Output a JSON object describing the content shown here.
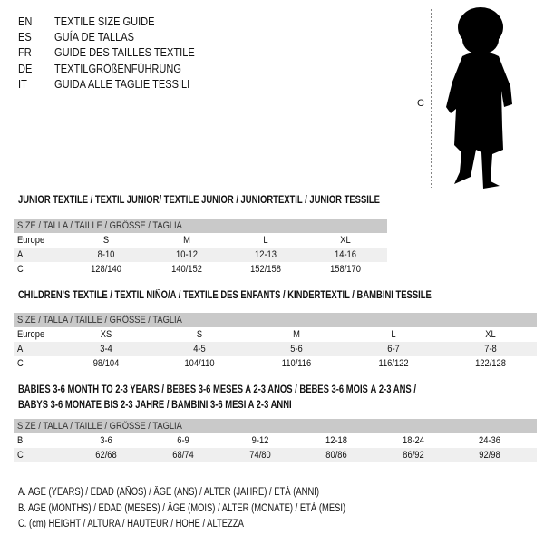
{
  "header": [
    {
      "code": "EN",
      "text": "TEXTILE SIZE GUIDE"
    },
    {
      "code": "ES",
      "text": "GUÍA DE TALLAS"
    },
    {
      "code": "FR",
      "text": "GUIDE DES TAILLES TEXTILE"
    },
    {
      "code": "DE",
      "text": "TEXTILGRÖßENFÜHRUNG"
    },
    {
      "code": "IT",
      "text": "GUIDA ALLE TAGLIE TESSILI"
    }
  ],
  "figure": {
    "label": "C",
    "icon": "child-silhouette"
  },
  "junior": {
    "title": "JUNIOR TEXTILE / TEXTIL JUNIOR/ TEXTILE JUNIOR / JUNIORTEXTIL / JUNIOR TESSILE",
    "head": "SIZE / TALLA / TAILLE / GRÖSSE / TAGLIA",
    "rows": [
      {
        "label": "Europe",
        "values": [
          "S",
          "M",
          "L",
          "XL"
        ]
      },
      {
        "label": "A",
        "values": [
          "8-10",
          "10-12",
          "12-13",
          "14-16"
        ]
      },
      {
        "label": "C",
        "values": [
          "128/140",
          "140/152",
          "152/158",
          "158/170"
        ]
      }
    ]
  },
  "children": {
    "title": "CHILDREN'S TEXTILE / TEXTIL NIÑO/A / TEXTILE DES ENFANTS / KINDERTEXTIL / BAMBINI TESSILE",
    "head": "SIZE / TALLA / TAILLE / GRÖSSE / TAGLIA",
    "rows": [
      {
        "label": "Europe",
        "values": [
          "XS",
          "S",
          "M",
          "L",
          "XL"
        ]
      },
      {
        "label": "A",
        "values": [
          "3-4",
          "4-5",
          "5-6",
          "6-7",
          "7-8"
        ]
      },
      {
        "label": "C",
        "values": [
          "98/104",
          "104/110",
          "110/116",
          "116/122",
          "122/128"
        ]
      }
    ]
  },
  "babies": {
    "title1": "BABIES 3-6 MONTH TO 2-3 YEARS / BEBÉS 3-6 MESES A 2-3 AÑOS / BÉBÉS 3-6 MOIS À 2-3 ANS /",
    "title2": "BABYS 3-6 MONATE BIS 2-3 JAHRE / BAMBINI 3-6 MESI A 2-3 ANNI",
    "head": "SIZE / TALLA / TAILLE / GRÖSSE / TAGLIA",
    "rows": [
      {
        "label": "B",
        "values": [
          "3-6",
          "6-9",
          "9-12",
          "12-18",
          "18-24",
          "24-36"
        ]
      },
      {
        "label": "C",
        "values": [
          "62/68",
          "68/74",
          "74/80",
          "80/86",
          "86/92",
          "92/98"
        ]
      }
    ]
  },
  "legend": [
    "A. AGE (YEARS) / EDAD (AÑOS) / ÂGE (ANS) / ALTER (JAHRE) / ETÀ (ANNI)",
    "B. AGE (MONTHS) / EDAD (MESES) / ÂGE (MOIS) / ALTER (MONATE) / ETÀ (MESI)",
    "C. (cm) HEIGHT / ALTURA / HAUTEUR / HÖHE / ALTEZZA"
  ]
}
